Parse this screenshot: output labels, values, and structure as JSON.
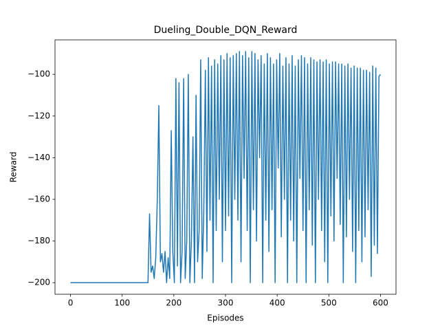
{
  "chart_data": {
    "type": "line",
    "title": "Dueling_Double_DQN_Reward",
    "x_label": "Episodes",
    "y_label": "Reward",
    "x": [
      0,
      150,
      153,
      156,
      159,
      162,
      165,
      168,
      171,
      174,
      177,
      180,
      183,
      186,
      189,
      192,
      195,
      198,
      201,
      204,
      207,
      210,
      213,
      216,
      219,
      222,
      225,
      228,
      231,
      234,
      237,
      240,
      243,
      246,
      249,
      252,
      255,
      258,
      261,
      264,
      267,
      270,
      273,
      276,
      279,
      282,
      285,
      288,
      291,
      294,
      297,
      300,
      303,
      306,
      309,
      312,
      315,
      318,
      321,
      324,
      327,
      330,
      333,
      336,
      339,
      342,
      345,
      348,
      351,
      354,
      357,
      360,
      363,
      366,
      369,
      372,
      375,
      378,
      381,
      384,
      387,
      390,
      393,
      396,
      399,
      402,
      405,
      408,
      411,
      414,
      417,
      420,
      423,
      426,
      429,
      432,
      435,
      438,
      441,
      444,
      447,
      450,
      453,
      456,
      459,
      462,
      465,
      468,
      471,
      474,
      477,
      480,
      483,
      486,
      489,
      492,
      495,
      498,
      501,
      504,
      507,
      510,
      513,
      516,
      519,
      522,
      525,
      528,
      531,
      534,
      537,
      540,
      543,
      546,
      549,
      552,
      555,
      558,
      561,
      564,
      567,
      570,
      573,
      576,
      579,
      582,
      585,
      588,
      591,
      594,
      597,
      600
    ],
    "series": [
      {
        "name": "Reward",
        "color": "#1f77b4",
        "values": [
          -200,
          -200,
          -167,
          -195,
          -192,
          -198,
          -188,
          -160,
          -115,
          -190,
          -186,
          -195,
          -185,
          -200,
          -188,
          -198,
          -127,
          -185,
          -200,
          -102,
          -192,
          -104,
          -200,
          -185,
          -102,
          -198,
          -180,
          -100,
          -200,
          -180,
          -130,
          -200,
          -110,
          -190,
          -175,
          -93,
          -198,
          -165,
          -98,
          -185,
          -92,
          -170,
          -96,
          -200,
          -93,
          -175,
          -95,
          -160,
          -91,
          -190,
          -93,
          -175,
          -90,
          -168,
          -92,
          -200,
          -91,
          -160,
          -90,
          -170,
          -89,
          -190,
          -91,
          -150,
          -89,
          -175,
          -92,
          -200,
          -89,
          -165,
          -90,
          -180,
          -93,
          -140,
          -91,
          -200,
          -95,
          -170,
          -90,
          -185,
          -92,
          -165,
          -95,
          -200,
          -93,
          -145,
          -90,
          -178,
          -96,
          -160,
          -92,
          -200,
          -95,
          -170,
          -91,
          -180,
          -96,
          -200,
          -93,
          -150,
          -91,
          -175,
          -92,
          -200,
          -95,
          -165,
          -92,
          -182,
          -93,
          -200,
          -94,
          -160,
          -93,
          -175,
          -94,
          -190,
          -93,
          -200,
          -95,
          -168,
          -94,
          -180,
          -94,
          -150,
          -95,
          -172,
          -95,
          -200,
          -96,
          -178,
          -95,
          -160,
          -97,
          -185,
          -96,
          -200,
          -97,
          -175,
          -97,
          -190,
          -98,
          -178,
          -98,
          -165,
          -99,
          -197,
          -96,
          -182,
          -97,
          -186,
          -101,
          -100
        ]
      }
    ],
    "xlim": [
      -30,
      630
    ],
    "ylim": [
      -205.55,
      -83.45
    ],
    "xticks": [
      0,
      100,
      200,
      300,
      400,
      500,
      600
    ],
    "yticks": [
      {
        "value": -200,
        "label": "−200"
      },
      {
        "value": -180,
        "label": "−180"
      },
      {
        "value": -160,
        "label": "−160"
      },
      {
        "value": -140,
        "label": "−140"
      },
      {
        "value": -120,
        "label": "−120"
      },
      {
        "value": -100,
        "label": "−100"
      }
    ],
    "grid": false
  }
}
